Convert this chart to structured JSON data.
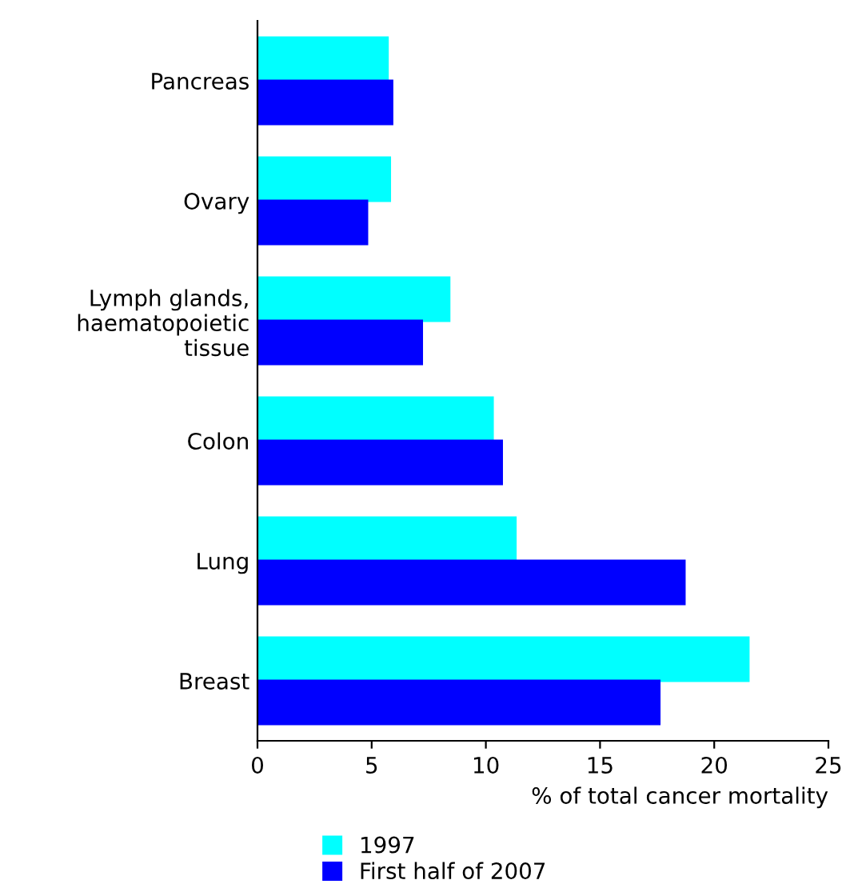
{
  "chart_data": {
    "type": "bar",
    "orientation": "horizontal",
    "xlabel": "% of total cancer mortality",
    "categories": [
      "Pancreas",
      "Ovary",
      "Lymph glands,\nhaematopoietic\ntissue",
      "Colon",
      "Lung",
      "Breast"
    ],
    "series": [
      {
        "name": "1997",
        "color": "#00ffff",
        "values": [
          5.7,
          5.8,
          8.4,
          10.3,
          11.3,
          21.5
        ]
      },
      {
        "name": "First half of 2007",
        "color": "#0000ff",
        "values": [
          5.9,
          4.8,
          7.2,
          10.7,
          18.7,
          17.6
        ]
      }
    ],
    "xlim": [
      0,
      25
    ],
    "xticks": [
      0,
      5,
      10,
      15,
      20,
      25
    ],
    "grid": false,
    "legend": "bottom"
  }
}
